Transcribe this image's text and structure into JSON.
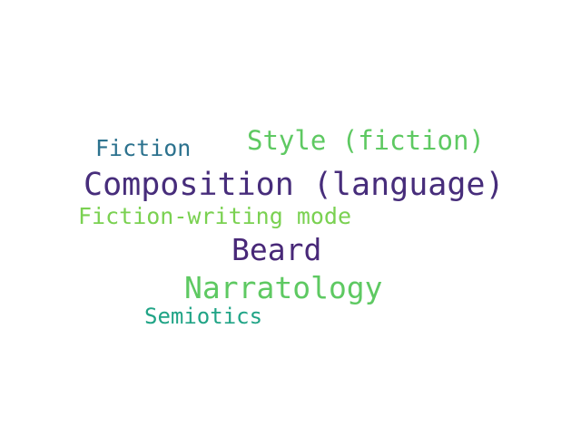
{
  "word_cloud": {
    "words": [
      {
        "text": "Composition (language)",
        "color": "#472d7b"
      },
      {
        "text": "Style (fiction)",
        "color": "#5ec962"
      },
      {
        "text": "Fiction",
        "color": "#2c728e"
      },
      {
        "text": "Fiction-writing mode",
        "color": "#7ad151"
      },
      {
        "text": "Beard",
        "color": "#482878"
      },
      {
        "text": "Narratology",
        "color": "#5ec962"
      },
      {
        "text": "Semiotics",
        "color": "#20a486"
      }
    ]
  }
}
